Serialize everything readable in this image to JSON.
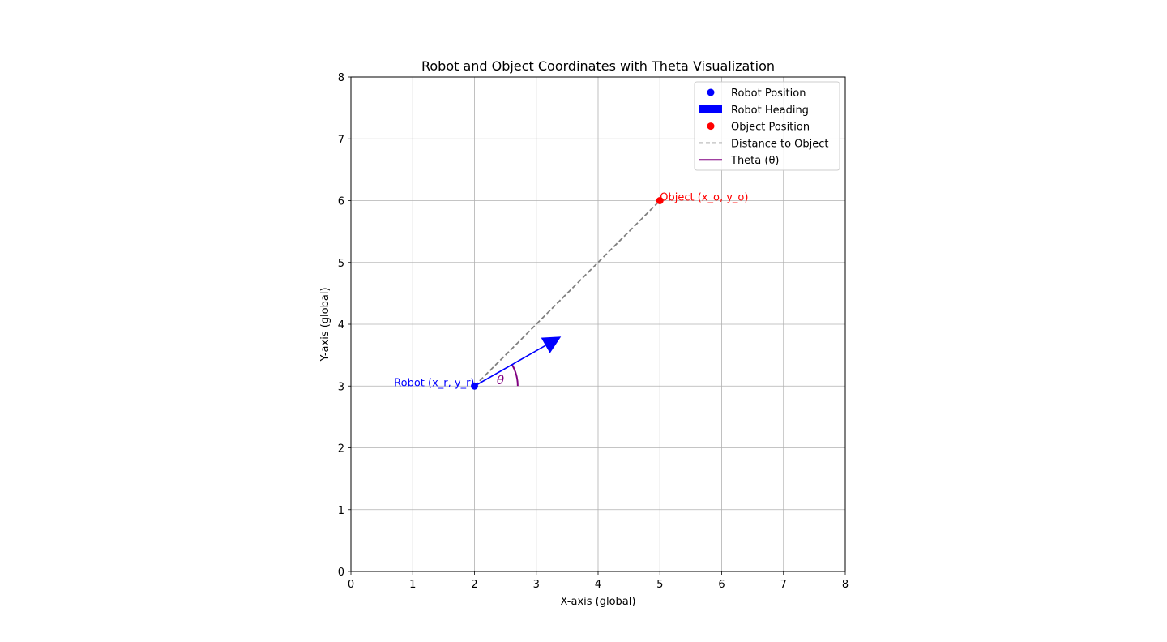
{
  "chart_data": {
    "type": "scatter",
    "title": "Robot and Object Coordinates with Theta Visualization",
    "xlabel": "X-axis (global)",
    "ylabel": "Y-axis (global)",
    "xlim": [
      0,
      8
    ],
    "ylim": [
      0,
      8
    ],
    "xticks": [
      "0",
      "1",
      "2",
      "3",
      "4",
      "5",
      "6",
      "7",
      "8"
    ],
    "yticks": [
      "0",
      "1",
      "2",
      "3",
      "4",
      "5",
      "6",
      "7",
      "8"
    ],
    "grid": true,
    "legend_position": "top-right",
    "robot": {
      "x": 2,
      "y": 3,
      "label": "Robot (x_r, y_r)",
      "color": "#0000ff"
    },
    "object": {
      "x": 5,
      "y": 6,
      "label": "Object (x_o, y_o)",
      "color": "#ff0000"
    },
    "heading": {
      "dx": 1.4,
      "dy": 0.8,
      "color": "#0000ff"
    },
    "distance_line": {
      "color": "#808080"
    },
    "theta": {
      "symbol": "θ",
      "radius": 0.7,
      "color": "#800080"
    },
    "legend": [
      {
        "label": "Robot Position",
        "marker": "dot",
        "color": "#0000ff"
      },
      {
        "label": "Robot Heading",
        "marker": "rect",
        "color": "#0000ff"
      },
      {
        "label": "Object Position",
        "marker": "dot",
        "color": "#ff0000"
      },
      {
        "label": "Distance to Object",
        "marker": "dashed",
        "color": "#808080"
      },
      {
        "label": "Theta (θ)",
        "marker": "line",
        "color": "#800080"
      }
    ]
  }
}
